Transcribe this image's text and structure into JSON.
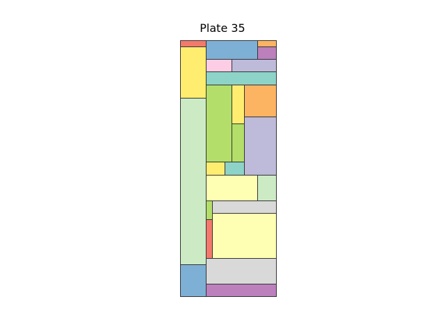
{
  "title": "Plate 35",
  "palette": {
    "red": "#f4796d",
    "blue": "#7eb0d5",
    "orange": "#fdb462",
    "purple": "#bc80bd",
    "yellow": "#ffed6f",
    "pink": "#fccde5",
    "lavender": "#bebada",
    "teal": "#8dd3c7",
    "lightgreen": "#ccebc5",
    "green": "#b3de69",
    "cream": "#ffffb3",
    "gray": "#d9d9d9"
  },
  "edge_color": "#333333"
}
